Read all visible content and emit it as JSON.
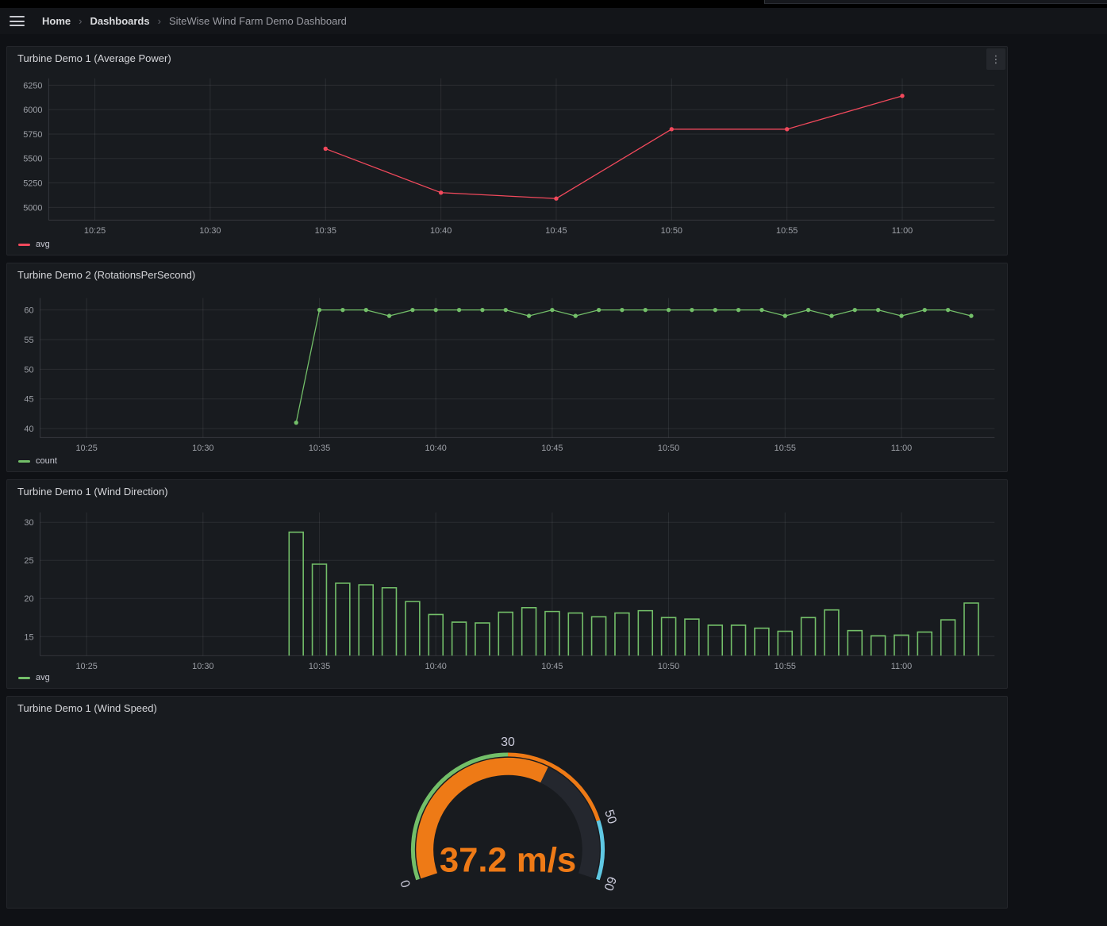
{
  "breadcrumb": {
    "separator": "›",
    "items": [
      {
        "label": "Home"
      },
      {
        "label": "Dashboards"
      },
      {
        "label": "SiteWise Wind Farm Demo Dashboard"
      }
    ]
  },
  "icons": {
    "hamburger": "menu",
    "kebab": "⋮"
  },
  "colors": {
    "red": "#F2495C",
    "green": "#73BF69",
    "orange": "#EE7A16",
    "cyan": "#5FC8E3",
    "panel_bg": "#181B1F",
    "page_bg": "#0F1115"
  },
  "chart_data": [
    {
      "type": "line",
      "title": "Turbine Demo 1 (Average Power)",
      "series_name": "avg",
      "color": "#F2495C",
      "x": [
        "10:35",
        "10:40",
        "10:45",
        "10:50",
        "10:55",
        "11:00"
      ],
      "values": [
        5600,
        5150,
        5090,
        5800,
        5800,
        6140
      ],
      "x_ticks": [
        "10:25",
        "10:30",
        "10:35",
        "10:40",
        "10:45",
        "10:50",
        "10:55",
        "11:00"
      ],
      "y_ticks": [
        5000,
        5250,
        5500,
        5750,
        6000,
        6250
      ],
      "ylim": [
        4870,
        6320
      ],
      "xlim_minutes": [
        623,
        664
      ],
      "grid": true,
      "legend_position": "bottom-left"
    },
    {
      "type": "line",
      "title": "Turbine Demo 2 (RotationsPerSecond)",
      "series_name": "count",
      "color": "#73BF69",
      "x": [
        "10:34",
        "10:35",
        "10:36",
        "10:37",
        "10:38",
        "10:39",
        "10:40",
        "10:41",
        "10:42",
        "10:43",
        "10:44",
        "10:45",
        "10:46",
        "10:47",
        "10:48",
        "10:49",
        "10:50",
        "10:51",
        "10:52",
        "10:53",
        "10:54",
        "10:55",
        "10:56",
        "10:57",
        "10:58",
        "10:59",
        "11:00",
        "11:01",
        "11:02",
        "11:03"
      ],
      "values": [
        41,
        60,
        60,
        60,
        59,
        60,
        60,
        60,
        60,
        60,
        59,
        60,
        59,
        60,
        60,
        60,
        60,
        60,
        60,
        60,
        60,
        59,
        60,
        59,
        60,
        60,
        59,
        60,
        60,
        59
      ],
      "x_ticks": [
        "10:25",
        "10:30",
        "10:35",
        "10:40",
        "10:45",
        "10:50",
        "10:55",
        "11:00"
      ],
      "y_ticks": [
        40,
        45,
        50,
        55,
        60
      ],
      "ylim": [
        38.5,
        62
      ],
      "xlim_minutes": [
        623,
        664
      ],
      "grid": true,
      "legend_position": "bottom-left"
    },
    {
      "type": "bar",
      "title": "Turbine Demo 1 (Wind Direction)",
      "series_name": "avg",
      "color": "#73BF69",
      "x": [
        "10:34",
        "10:35",
        "10:36",
        "10:37",
        "10:38",
        "10:39",
        "10:40",
        "10:41",
        "10:42",
        "10:43",
        "10:44",
        "10:45",
        "10:46",
        "10:47",
        "10:48",
        "10:49",
        "10:50",
        "10:51",
        "10:52",
        "10:53",
        "10:54",
        "10:55",
        "10:56",
        "10:57",
        "10:58",
        "10:59",
        "11:00",
        "11:01",
        "11:02",
        "11:03"
      ],
      "values": [
        28.7,
        24.5,
        22.0,
        21.8,
        21.4,
        19.6,
        17.9,
        16.9,
        16.8,
        18.2,
        18.8,
        18.3,
        18.1,
        17.6,
        18.1,
        18.4,
        17.5,
        17.3,
        16.5,
        16.5,
        16.1,
        15.7,
        17.5,
        18.5,
        15.8,
        15.1,
        15.2,
        15.6,
        17.2,
        19.4
      ],
      "x_ticks": [
        "10:25",
        "10:30",
        "10:35",
        "10:40",
        "10:45",
        "10:50",
        "10:55",
        "11:00"
      ],
      "y_ticks": [
        15,
        20,
        25,
        30
      ],
      "ylim": [
        12.5,
        31.3
      ],
      "xlim_minutes": [
        623,
        664
      ],
      "grid": true,
      "legend_position": "bottom-left"
    },
    {
      "type": "gauge",
      "title": "Turbine Demo 1 (Wind Speed)",
      "value": 37.2,
      "unit": "m/s",
      "text": "37.2 m/s",
      "min": 0,
      "max": 60,
      "tick_labels": [
        0,
        30,
        50,
        60
      ],
      "thresholds": [
        {
          "from": 0,
          "color": "#73BF69"
        },
        {
          "from": 30,
          "color": "#EE7A16"
        },
        {
          "from": 50,
          "color": "#5FC8E3"
        }
      ],
      "value_color": "#EE7A16",
      "rest_color": "#24272E",
      "label_color": "#CCCCDC"
    }
  ]
}
